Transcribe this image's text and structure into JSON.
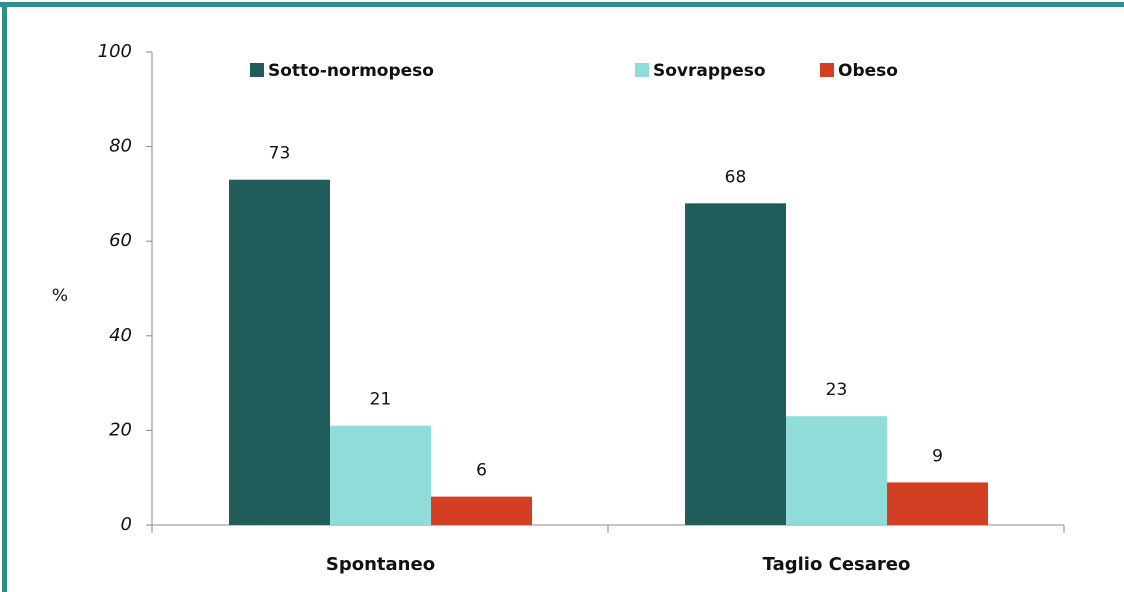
{
  "chart_data": {
    "type": "bar",
    "ylabel": "%",
    "categories": [
      "Spontaneo",
      "Taglio Cesareo"
    ],
    "series": [
      {
        "name": "Sotto-normopeso",
        "color": "#1f5c5a",
        "values": [
          73,
          68
        ]
      },
      {
        "name": "Sovrappeso",
        "color": "#8fdcd8",
        "values": [
          21,
          23
        ]
      },
      {
        "name": "Obeso",
        "color": "#d33f22",
        "values": [
          6,
          9
        ]
      }
    ],
    "ylim": [
      0,
      100
    ],
    "yticks": [
      0,
      20,
      40,
      60,
      80,
      100
    ],
    "grid": false
  }
}
